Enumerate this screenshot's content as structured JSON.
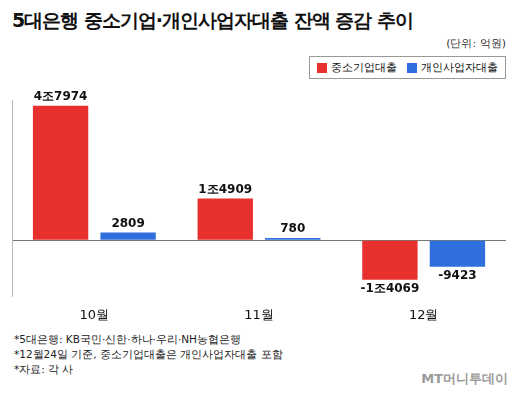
{
  "chart_data": {
    "type": "bar",
    "title": "5대은행 중소기업·개인사업자대출 잔액 증감 추이",
    "subtitle": "(단위: 억원)",
    "categories": [
      "10월",
      "11월",
      "12월"
    ],
    "series": [
      {
        "name": "중소기업대출",
        "color": "#e8312f",
        "values": [
          47974,
          14909,
          -14069
        ],
        "value_labels": [
          "4조7974",
          "1조4909",
          "-1조4069"
        ]
      },
      {
        "name": "개인사업자대출",
        "color": "#2f6fdc",
        "values": [
          2809,
          780,
          -9423
        ],
        "value_labels": [
          "2809",
          "780",
          "-9423"
        ]
      }
    ],
    "ylim": [
      -20000,
      50000
    ],
    "yticks": [
      0
    ],
    "grid": true,
    "legend": "upper right",
    "data_labels": true,
    "tick_labels": "x",
    "notes": [
      "*5대은행: KB국민·신한·하나·우리·NH농협은행",
      "*12월24일 기준, 중소기업대출은 개인사업자대출 포함",
      "*자료: 각 사"
    ],
    "credit": "MT머니투데이"
  }
}
